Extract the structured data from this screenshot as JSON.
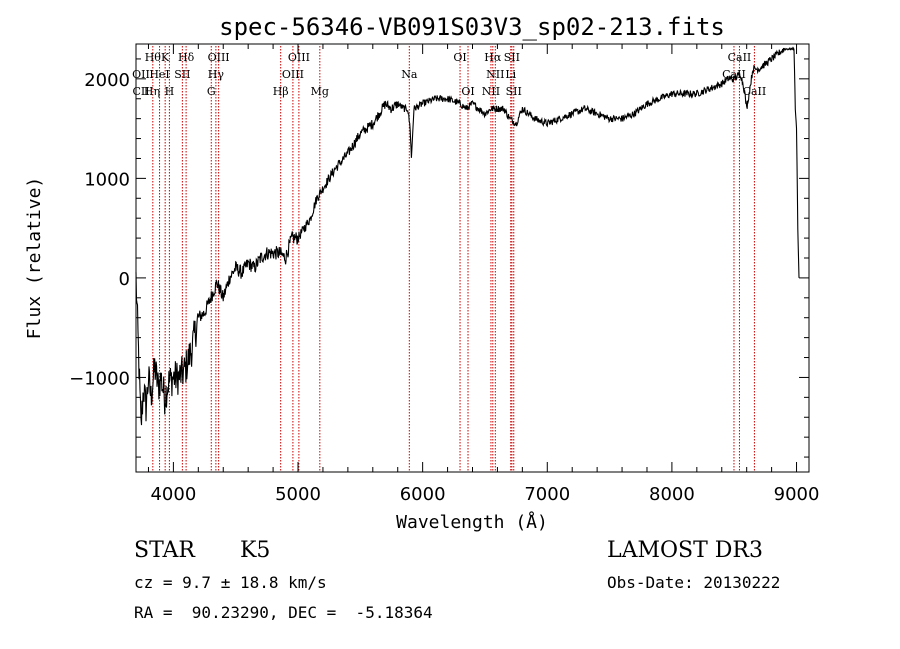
{
  "chart_data": {
    "type": "line",
    "title": "spec-56346-VB091S03V3_sp02-213.fits",
    "xlabel": "Wavelength (Å)",
    "ylabel": "Flux (relative)",
    "xlim": [
      3700,
      9100
    ],
    "ylim": [
      -1950,
      2350
    ],
    "xticks": [
      4000,
      5000,
      6000,
      7000,
      8000,
      9000
    ],
    "xtick_labels": [
      "4000",
      "5000",
      "6000",
      "7000",
      "8000",
      "9000"
    ],
    "yticks": [
      -1000,
      0,
      1000,
      2000
    ],
    "ytick_labels": [
      "−1000",
      "0",
      "1000",
      "2000"
    ],
    "grid": false,
    "series": [
      {
        "name": "flux",
        "x": [
          3700,
          3740,
          3760,
          3780,
          3800,
          3820,
          3850,
          3880,
          3900,
          3930,
          3960,
          4000,
          4040,
          4080,
          4100,
          4150,
          4200,
          4250,
          4300,
          4350,
          4400,
          4450,
          4500,
          4550,
          4600,
          4650,
          4700,
          4750,
          4800,
          4850,
          4900,
          4950,
          5000,
          5050,
          5100,
          5150,
          5200,
          5300,
          5400,
          5500,
          5600,
          5700,
          5750,
          5800,
          5850,
          5880,
          5900,
          5910,
          5930,
          6000,
          6100,
          6200,
          6300,
          6350,
          6400,
          6500,
          6550,
          6600,
          6650,
          6700,
          6750,
          6800,
          6900,
          7000,
          7100,
          7200,
          7300,
          7400,
          7500,
          7600,
          7700,
          7800,
          7900,
          8000,
          8100,
          8200,
          8300,
          8400,
          8450,
          8500,
          8550,
          8580,
          8600,
          8650,
          8700,
          8750,
          8800,
          8850,
          8900,
          8950,
          8980,
          8990,
          9000,
          9010,
          9020
        ],
        "y": [
          0,
          -1500,
          -1100,
          -1300,
          -1000,
          -1200,
          -900,
          -1100,
          -1000,
          -1200,
          -1050,
          -1000,
          -1000,
          -950,
          -900,
          -700,
          -400,
          -350,
          -200,
          -50,
          -200,
          0,
          100,
          50,
          150,
          100,
          200,
          250,
          250,
          250,
          200,
          400,
          400,
          500,
          600,
          800,
          900,
          1100,
          1250,
          1450,
          1550,
          1750,
          1700,
          1750,
          1700,
          1700,
          1500,
          1200,
          1700,
          1750,
          1800,
          1800,
          1750,
          1700,
          1750,
          1650,
          1700,
          1700,
          1700,
          1600,
          1550,
          1700,
          1600,
          1550,
          1600,
          1650,
          1700,
          1650,
          1600,
          1600,
          1650,
          1750,
          1800,
          1850,
          1850,
          1850,
          1900,
          1950,
          2000,
          2000,
          2050,
          1900,
          1700,
          2100,
          2100,
          2150,
          2200,
          2250,
          2300,
          2300,
          2300,
          1700,
          1500,
          500,
          0
        ],
        "color": "#000000"
      }
    ],
    "line_markers": [
      {
        "wavelength": 3835,
        "label": "Hθ",
        "row": 1
      },
      {
        "wavelength": 3889,
        "label": "HeI",
        "row": 2
      },
      {
        "wavelength": 3934,
        "label": "K",
        "row": 1
      },
      {
        "wavelength": 3968,
        "label": "H",
        "row": 3
      },
      {
        "wavelength": 4102,
        "label": "Hδ",
        "row": 1
      },
      {
        "wavelength": 4072,
        "label": "SII",
        "row": 2
      },
      {
        "wavelength": 4304,
        "label": "G",
        "row": 3
      },
      {
        "wavelength": 4341,
        "label": "Hγ",
        "row": 2
      },
      {
        "wavelength": 4363,
        "label": "OIII",
        "row": 1
      },
      {
        "wavelength": 4861,
        "label": "Hβ",
        "row": 3
      },
      {
        "wavelength": 4959,
        "label": "OIII",
        "row": 2
      },
      {
        "wavelength": 5007,
        "label": "OIII",
        "row": 1
      },
      {
        "wavelength": 5175,
        "label": "Mg",
        "row": 3
      },
      {
        "wavelength": 5893,
        "label": "Na",
        "row": 2
      },
      {
        "wavelength": 6300,
        "label": "OI",
        "row": 1
      },
      {
        "wavelength": 6364,
        "label": "OI",
        "row": 3
      },
      {
        "wavelength": 6548,
        "label": "NII",
        "row": 3
      },
      {
        "wavelength": 6563,
        "label": "Hα",
        "row": 1
      },
      {
        "wavelength": 6583,
        "label": "NII",
        "row": 2
      },
      {
        "wavelength": 6707,
        "label": "Li",
        "row": 2
      },
      {
        "wavelength": 6716,
        "label": "SII",
        "row": 1
      },
      {
        "wavelength": 6731,
        "label": "SII",
        "row": 3
      },
      {
        "wavelength": 8498,
        "label": "CaII",
        "row": 2
      },
      {
        "wavelength": 8542,
        "label": "CaII",
        "row": 1
      },
      {
        "wavelength": 8662,
        "label": "CaII",
        "row": 3
      }
    ],
    "lower_left_marker_labels": [
      "OII",
      "CII",
      "Hη"
    ],
    "line_marker_color": "#cc0000"
  },
  "info": {
    "obj_class": "STAR",
    "obj_subclass": "K5",
    "survey": "LAMOST DR3",
    "cz": "cz = 9.7 ± 18.8 km/s",
    "obs_date": "Obs-Date: 20130222",
    "radec": "RA =  90.23290, DEC =  -5.18364"
  }
}
